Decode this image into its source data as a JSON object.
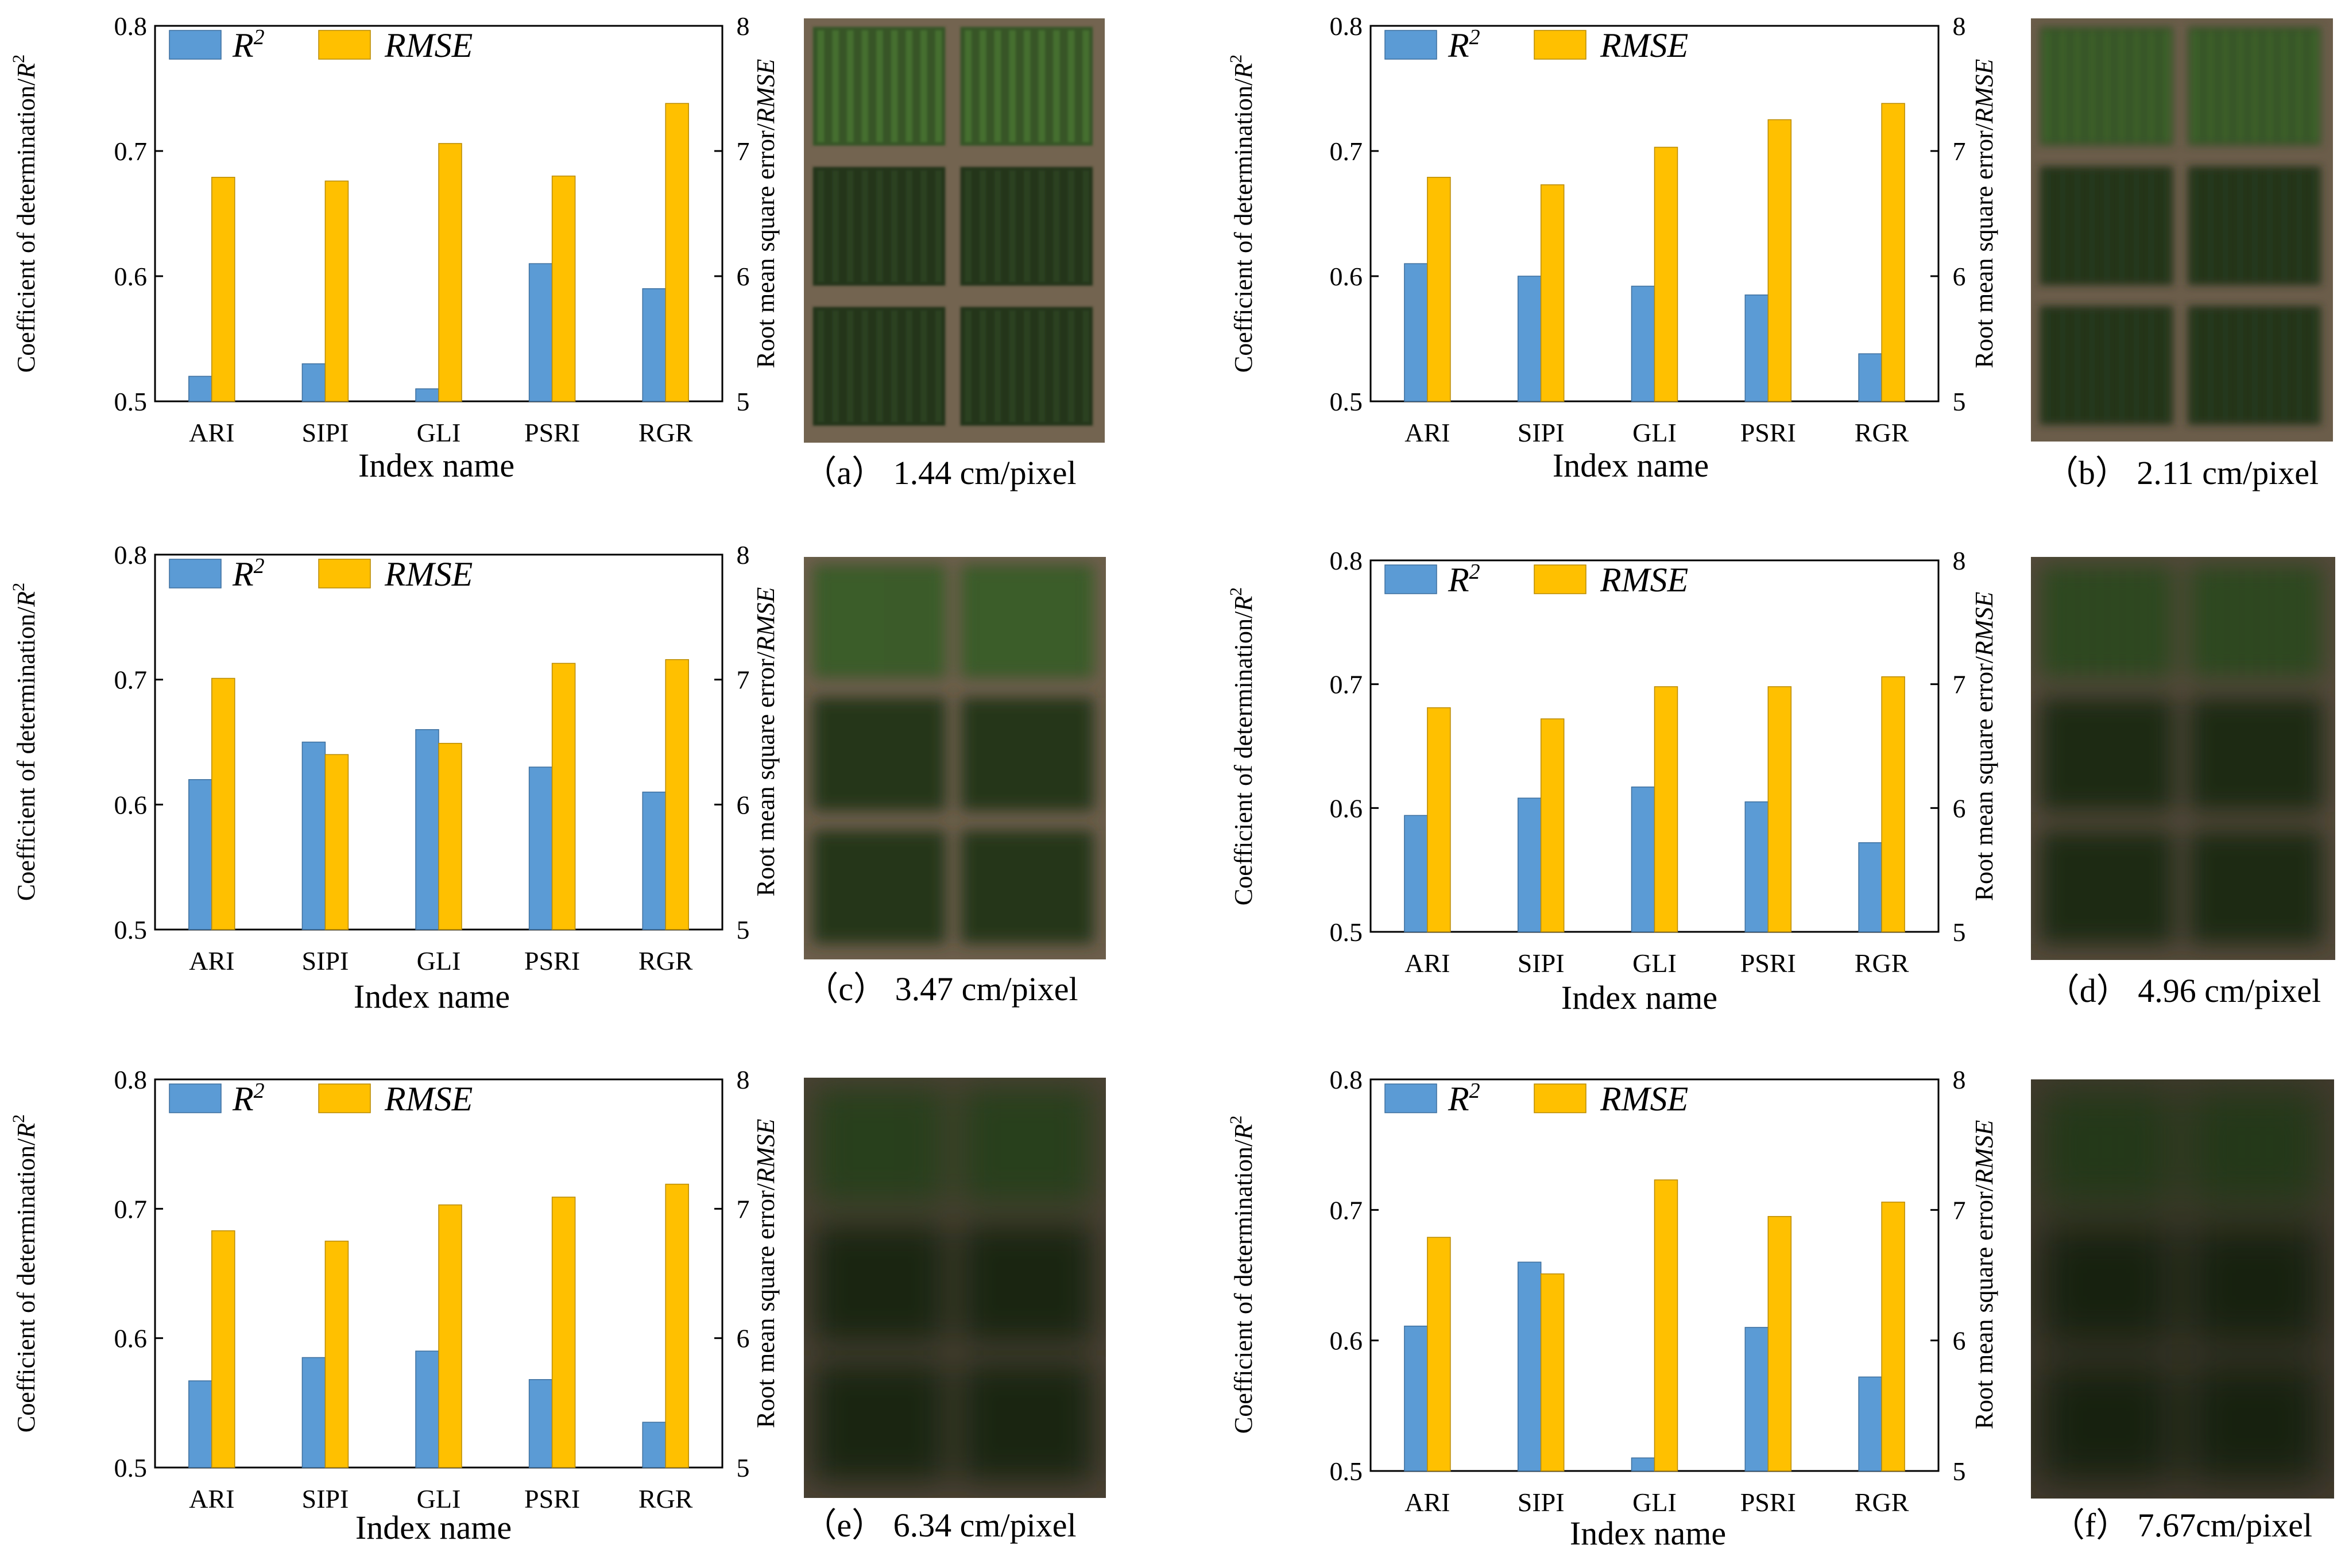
{
  "colors": {
    "r2": "#5b9bd5",
    "rmse": "#ffc000",
    "axis": "#000000"
  },
  "chart_data": [
    {
      "type": "bar",
      "panel": "a",
      "caption": "（a） 1.44 cm/pixel",
      "categories": [
        "ARI",
        "SIPI",
        "GLI",
        "PSRI",
        "RGR"
      ],
      "series": [
        {
          "name": "R²",
          "legend_base": "R",
          "legend_sup": "2",
          "axis": "left",
          "values": [
            0.52,
            0.53,
            0.51,
            0.61,
            0.59
          ]
        },
        {
          "name": "RMSE",
          "axis": "right",
          "values": [
            6.79,
            6.76,
            7.06,
            6.8,
            7.38
          ]
        }
      ],
      "xlabel": "Index name",
      "ylabel_left": "Coefficient of determination/R²",
      "ylabel_left_base": "Coefficient of determination/",
      "ylabel_left_var": "R",
      "ylabel_right": "Root mean square error/RMSE",
      "ylabel_right_base": "Root mean square error/",
      "ylabel_right_var": "RMSE",
      "ylim_left": [
        0.5,
        0.8
      ],
      "ylim_right": [
        5,
        8
      ],
      "yticks_left": [
        "0.5",
        "0.6",
        "0.7",
        "0.8"
      ],
      "yticks_right": [
        "5",
        "6",
        "7",
        "8"
      ]
    },
    {
      "type": "bar",
      "panel": "b",
      "caption": "（b） 2.11 cm/pixel",
      "categories": [
        "ARI",
        "SIPI",
        "GLI",
        "PSRI",
        "RGR"
      ],
      "series": [
        {
          "name": "R²",
          "legend_base": "R",
          "legend_sup": "2",
          "axis": "left",
          "values": [
            0.61,
            0.6,
            0.592,
            0.585,
            0.538
          ]
        },
        {
          "name": "RMSE",
          "axis": "right",
          "values": [
            6.79,
            6.73,
            7.03,
            7.25,
            7.38
          ]
        }
      ],
      "xlabel": "Index name",
      "ylabel_left": "Coefficient of determination/R²",
      "ylabel_left_base": "Coefficient of determination/",
      "ylabel_left_var": "R",
      "ylabel_right": "Root mean square error/RMSE",
      "ylabel_right_base": "Root mean square error/",
      "ylabel_right_var": "RMSE",
      "ylim_left": [
        0.5,
        0.8
      ],
      "ylim_right": [
        5,
        8
      ],
      "yticks_left": [
        "0.5",
        "0.6",
        "0.7",
        "0.8"
      ],
      "yticks_right": [
        "5",
        "6",
        "7",
        "8"
      ]
    },
    {
      "type": "bar",
      "panel": "c",
      "caption": "（c） 3.47 cm/pixel",
      "categories": [
        "ARI",
        "SIPI",
        "GLI",
        "PSRI",
        "RGR"
      ],
      "series": [
        {
          "name": "R²",
          "legend_base": "R",
          "legend_sup": "2",
          "axis": "left",
          "values": [
            0.62,
            0.65,
            0.66,
            0.63,
            0.61
          ]
        },
        {
          "name": "RMSE",
          "axis": "right",
          "values": [
            7.01,
            6.4,
            6.49,
            7.13,
            7.16
          ]
        }
      ],
      "xlabel": "Index name",
      "ylabel_left": "Coefficient of determination/R²",
      "ylabel_left_base": "Coefficient of determination/",
      "ylabel_left_var": "R",
      "ylabel_right": "Root mean square error/RMSE",
      "ylabel_right_base": "Root mean square error/",
      "ylabel_right_var": "RMSE",
      "ylim_left": [
        0.5,
        0.8
      ],
      "ylim_right": [
        5,
        8
      ],
      "yticks_left": [
        "0.5",
        "0.6",
        "0.7",
        "0.8"
      ],
      "yticks_right": [
        "5",
        "6",
        "7",
        "8"
      ]
    },
    {
      "type": "bar",
      "panel": "d",
      "caption": "（d） 4.96 cm/pixel",
      "categories": [
        "ARI",
        "SIPI",
        "GLI",
        "PSRI",
        "RGR"
      ],
      "series": [
        {
          "name": "R²",
          "legend_base": "R",
          "legend_sup": "2",
          "axis": "left",
          "values": [
            0.594,
            0.608,
            0.617,
            0.605,
            0.572
          ]
        },
        {
          "name": "RMSE",
          "axis": "right",
          "values": [
            6.81,
            6.72,
            6.98,
            6.98,
            7.06
          ]
        }
      ],
      "xlabel": "Index name",
      "ylabel_left": "Coefficient of determination/R²",
      "ylabel_left_base": "Coefficient of determination/",
      "ylabel_left_var": "R",
      "ylabel_right": "Root mean square error/RMSE",
      "ylabel_right_base": "Root mean square error/",
      "ylabel_right_var": "RMSE",
      "ylim_left": [
        0.5,
        0.8
      ],
      "ylim_right": [
        5,
        8
      ],
      "yticks_left": [
        "0.5",
        "0.6",
        "0.7",
        "0.8"
      ],
      "yticks_right": [
        "5",
        "6",
        "7",
        "8"
      ]
    },
    {
      "type": "bar",
      "panel": "e",
      "caption": "（e） 6.34 cm/pixel",
      "categories": [
        "ARI",
        "SIPI",
        "GLI",
        "PSRI",
        "RGR"
      ],
      "series": [
        {
          "name": "R²",
          "legend_base": "R",
          "legend_sup": "2",
          "axis": "left",
          "values": [
            0.567,
            0.585,
            0.59,
            0.568,
            0.535
          ]
        },
        {
          "name": "RMSE",
          "axis": "right",
          "values": [
            6.83,
            6.75,
            7.03,
            7.09,
            7.19
          ]
        }
      ],
      "xlabel": "Index name",
      "ylabel_left": "Coefficient of determination/R²",
      "ylabel_left_base": "Coefficient of determination/",
      "ylabel_left_var": "R",
      "ylabel_right": "Root mean square error/RMSE",
      "ylabel_right_base": "Root mean square error/",
      "ylabel_right_var": "RMSE",
      "ylim_left": [
        0.5,
        0.8
      ],
      "ylim_right": [
        5,
        8
      ],
      "yticks_left": [
        "0.5",
        "0.6",
        "0.7",
        "0.8"
      ],
      "yticks_right": [
        "5",
        "6",
        "7",
        "8"
      ]
    },
    {
      "type": "bar",
      "panel": "f",
      "caption": "（f） 7.67cm/pixel",
      "categories": [
        "ARI",
        "SIPI",
        "GLI",
        "PSRI",
        "RGR"
      ],
      "series": [
        {
          "name": "R²",
          "legend_base": "R",
          "legend_sup": "2",
          "axis": "left",
          "values": [
            0.611,
            0.66,
            0.51,
            0.61,
            0.572
          ]
        },
        {
          "name": "RMSE",
          "axis": "right",
          "values": [
            6.79,
            6.51,
            7.23,
            6.95,
            7.06
          ]
        }
      ],
      "xlabel": "Index name",
      "ylabel_left": "Coefficient of determination/R²",
      "ylabel_left_base": "Coefficient of determination/",
      "ylabel_left_var": "R",
      "ylabel_right": "Root mean square error/RMSE",
      "ylabel_right_base": "Root mean square error/",
      "ylabel_right_var": "RMSE",
      "ylim_left": [
        0.5,
        0.8
      ],
      "ylim_right": [
        5,
        8
      ],
      "yticks_left": [
        "0.5",
        "0.6",
        "0.7",
        "0.8"
      ],
      "yticks_right": [
        "5",
        "6",
        "7",
        "8"
      ]
    }
  ]
}
